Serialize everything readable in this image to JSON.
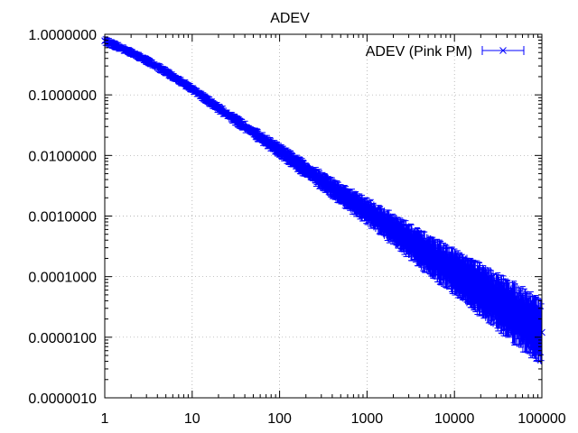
{
  "chart_data": {
    "type": "line",
    "title": "ADEV",
    "xlabel": "",
    "ylabel": "",
    "x_scale": "log",
    "y_scale": "log",
    "xlim": [
      1,
      100000
    ],
    "ylim": [
      1e-06,
      1
    ],
    "grid": true,
    "legend_position": "top-right",
    "x_tick_labels": [
      "1",
      "10",
      "100",
      "1000",
      "10000",
      "100000"
    ],
    "y_tick_labels": [
      "1.0000000",
      "0.1000000",
      "0.0100000",
      "0.0010000",
      "0.0001000",
      "0.0000100",
      "0.0000010"
    ],
    "series": [
      {
        "name": "ADEV (Pink PM)",
        "color": "#0000ff",
        "marker": "x",
        "error_bars": true,
        "points": [
          {
            "x": 1,
            "y": 0.78
          },
          {
            "x": 2,
            "y": 0.5
          },
          {
            "x": 3,
            "y": 0.37
          },
          {
            "x": 4,
            "y": 0.29
          },
          {
            "x": 5,
            "y": 0.24
          },
          {
            "x": 6,
            "y": 0.2
          },
          {
            "x": 7,
            "y": 0.175
          },
          {
            "x": 8,
            "y": 0.155
          },
          {
            "x": 10,
            "y": 0.125
          },
          {
            "x": 20,
            "y": 0.06
          },
          {
            "x": 50,
            "y": 0.024
          },
          {
            "x": 100,
            "y": 0.012
          },
          {
            "x": 200,
            "y": 0.0058
          },
          {
            "x": 500,
            "y": 0.0023
          },
          {
            "x": 1000,
            "y": 0.0012
          },
          {
            "x": 2000,
            "y": 0.0006
          },
          {
            "x": 5000,
            "y": 0.00023
          },
          {
            "x": 10000,
            "y": 0.00012
          },
          {
            "x": 20000,
            "y": 6e-05
          },
          {
            "x": 50000,
            "y": 2.4e-05
          },
          {
            "x": 100000,
            "y": 1.2e-05
          }
        ]
      }
    ]
  }
}
